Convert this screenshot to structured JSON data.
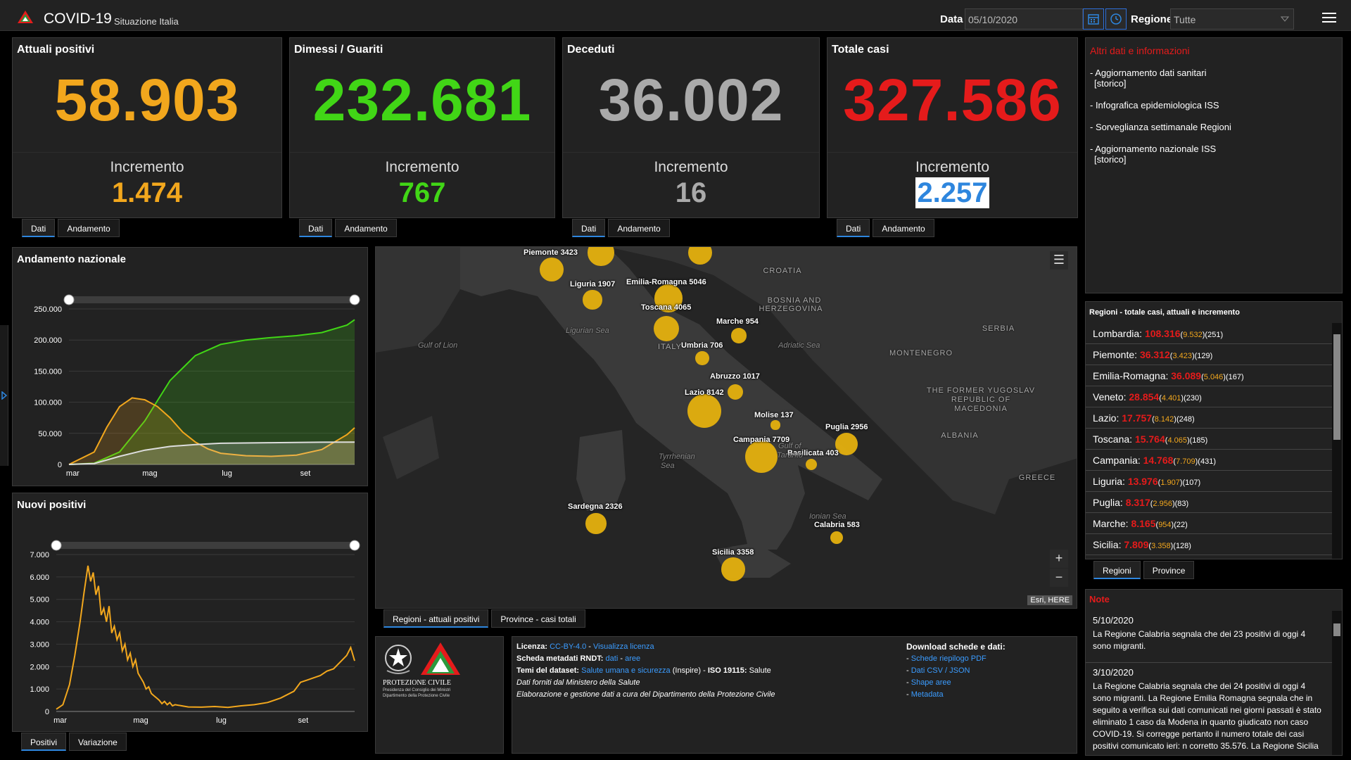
{
  "header": {
    "title": "COVID-19",
    "subtitle": "Situazione Italia",
    "data_label": "Data",
    "date_value": "05/10/2020",
    "regione_label": "Regione",
    "regione_value": "Tutte"
  },
  "kpis": [
    {
      "title": "Attuali positivi",
      "value": "58.903",
      "inc_label": "Incremento",
      "inc": "1.474",
      "color": "#f2a71d",
      "tabs": [
        "Dati",
        "Andamento"
      ]
    },
    {
      "title": "Dimessi / Guariti",
      "value": "232.681",
      "inc_label": "Incremento",
      "inc": "767",
      "color": "#41d616",
      "tabs": [
        "Dati",
        "Andamento"
      ]
    },
    {
      "title": "Deceduti",
      "value": "36.002",
      "inc_label": "Incremento",
      "inc": "16",
      "color": "#aaaaaa",
      "tabs": [
        "Dati",
        "Andamento"
      ]
    },
    {
      "title": "Totale casi",
      "value": "327.586",
      "inc_label": "Incremento",
      "inc": "2.257",
      "color": "#e51b1b",
      "tabs": [
        "Dati",
        "Andamento"
      ]
    }
  ],
  "info": {
    "title": "Altri dati e informazioni",
    "items": [
      {
        "line1": "- Aggiornamento dati sanitari",
        "line2": "[storico]"
      },
      {
        "line1": "- Infografica epidemiologica ISS",
        "line2": ""
      },
      {
        "line1": "- Sorveglianza settimanale Regioni",
        "line2": ""
      },
      {
        "line1": "- Aggiornamento nazionale ISS",
        "line2": "[storico]"
      }
    ]
  },
  "chart_data": [
    {
      "type": "area",
      "title": "Andamento nazionale",
      "categories": [
        "mar",
        "mag",
        "lug",
        "set"
      ],
      "ylim": [
        0,
        250000
      ],
      "yticks": [
        "0",
        "50.000",
        "100.000",
        "150.000",
        "200.000",
        "250.000"
      ],
      "series": [
        {
          "color": "#41d616",
          "x": [
            0,
            20,
            40,
            60,
            80,
            100,
            120,
            140,
            160,
            180,
            200,
            220,
            226
          ],
          "y": [
            0,
            2000,
            20000,
            70000,
            135000,
            175000,
            193000,
            200000,
            204000,
            207000,
            212000,
            224000,
            232681
          ]
        },
        {
          "color": "#f2a71d",
          "x": [
            0,
            20,
            30,
            40,
            50,
            60,
            70,
            80,
            90,
            100,
            110,
            120,
            140,
            160,
            180,
            200,
            220,
            226
          ],
          "y": [
            0,
            20000,
            60000,
            93000,
            107000,
            104000,
            93000,
            75000,
            52000,
            36000,
            25000,
            18000,
            14000,
            13000,
            15000,
            24000,
            48000,
            58903
          ]
        },
        {
          "color": "#dddddd",
          "x": [
            0,
            20,
            40,
            60,
            80,
            100,
            120,
            160,
            200,
            226
          ],
          "y": [
            0,
            1500,
            13000,
            23000,
            29000,
            32000,
            34000,
            35000,
            35700,
            36002
          ]
        }
      ],
      "tabs": []
    },
    {
      "type": "line",
      "title": "Nuovi positivi",
      "categories": [
        "mar",
        "mag",
        "lug",
        "set"
      ],
      "ylim": [
        0,
        7000
      ],
      "yticks": [
        "0",
        "1.000",
        "2.000",
        "3.000",
        "4.000",
        "5.000",
        "6.000",
        "7.000"
      ],
      "series": [
        {
          "color": "#f2a71d",
          "x": [
            0,
            5,
            10,
            14,
            18,
            21,
            24,
            26,
            28,
            30,
            32,
            34,
            36,
            38,
            40,
            42,
            44,
            46,
            48,
            50,
            52,
            54,
            56,
            58,
            60,
            62,
            64,
            66,
            68,
            70,
            72,
            74,
            76,
            78,
            80,
            82,
            84,
            86,
            88,
            90,
            95,
            100,
            110,
            120,
            130,
            140,
            150,
            160,
            170,
            180,
            185,
            190,
            195,
            200,
            205,
            210,
            215,
            220,
            223,
            226
          ],
          "y": [
            100,
            300,
            1200,
            2500,
            4000,
            5300,
            6500,
            5800,
            6200,
            5200,
            5600,
            4300,
            4600,
            4000,
            4700,
            3500,
            3800,
            3200,
            3500,
            2700,
            3000,
            2300,
            2600,
            2000,
            2300,
            1700,
            1500,
            1300,
            1000,
            1100,
            800,
            700,
            600,
            500,
            350,
            450,
            300,
            400,
            250,
            300,
            250,
            200,
            190,
            220,
            180,
            250,
            300,
            400,
            600,
            900,
            1300,
            1400,
            1500,
            1600,
            1800,
            1900,
            2200,
            2500,
            2850,
            2257
          ]
        }
      ],
      "tabs": [
        "Positivi",
        "Variazione"
      ]
    }
  ],
  "map": {
    "tabs": [
      "Regioni - attuali positivi",
      "Province - casi totali"
    ],
    "attribution": "Esri, HERE",
    "bubbles": [
      {
        "label": "Piemonte 3423",
        "value": 3423
      },
      {
        "label": "Liguria 1907",
        "value": 1907
      },
      {
        "label": "Emilia-Romagna 5046",
        "value": 5046
      },
      {
        "label": "Toscana 4065",
        "value": 4065
      },
      {
        "label": "Marche 954",
        "value": 954
      },
      {
        "label": "Umbria 706",
        "value": 706
      },
      {
        "label": "Abruzzo 1017",
        "value": 1017
      },
      {
        "label": "Lazio 8142",
        "value": 8142
      },
      {
        "label": "Molise 137",
        "value": 137
      },
      {
        "label": "Puglia 2956",
        "value": 2956
      },
      {
        "label": "Campania 7709",
        "value": 7709
      },
      {
        "label": "Basilicata 403",
        "value": 403
      },
      {
        "label": "Sardegna 2326",
        "value": 2326
      },
      {
        "label": "Calabria 583",
        "value": 583
      },
      {
        "label": "Sicilia 3358",
        "value": 3358
      }
    ],
    "unlabeled": [
      {
        "value": 4400
      },
      {
        "value": 3500
      }
    ],
    "places": [
      "CROATIA",
      "BOSNIA AND",
      "HERZEGOVINA",
      "SERBIA",
      "MONTENEGRO",
      "THE FORMER YUGOSLAV",
      "REPUBLIC OF",
      "MACEDONIA",
      "ALBANIA",
      "GREECE",
      "ITALY"
    ],
    "seas": [
      "Gulf of Lion",
      "Ligurian Sea",
      "Adriatic Sea",
      "Tyrrhenian",
      "Sea",
      "Gulf of",
      "Taranto",
      "Ionian Sea"
    ]
  },
  "regions": {
    "title": "Regioni - totale casi, attuali e incremento",
    "rows": [
      {
        "name": "Lombardia:",
        "total": "108.316",
        "attuali": "9.532",
        "inc": "(251)"
      },
      {
        "name": "Piemonte:",
        "total": "36.312",
        "attuali": "3.423",
        "inc": "(129)"
      },
      {
        "name": "Emilia-Romagna:",
        "total": "36.089",
        "attuali": "5.046",
        "inc": "(167)"
      },
      {
        "name": "Veneto:",
        "total": "28.854",
        "attuali": "4.401",
        "inc": "(230)"
      },
      {
        "name": "Lazio:",
        "total": "17.757",
        "attuali": "8.142",
        "inc": "(248)"
      },
      {
        "name": "Toscana:",
        "total": "15.764",
        "attuali": "4.065",
        "inc": "(185)"
      },
      {
        "name": "Campania:",
        "total": "14.768",
        "attuali": "7.709",
        "inc": "(431)"
      },
      {
        "name": "Liguria:",
        "total": "13.976",
        "attuali": "1.907",
        "inc": "(107)"
      },
      {
        "name": "Puglia:",
        "total": "8.317",
        "attuali": "2.956",
        "inc": "(83)"
      },
      {
        "name": "Marche:",
        "total": "8.165",
        "attuali": "954",
        "inc": "(22)"
      },
      {
        "name": "Sicilia:",
        "total": "7.809",
        "attuali": "3.358",
        "inc": "(128)"
      }
    ],
    "tabs": [
      "Regioni",
      "Province"
    ]
  },
  "notes": {
    "title": "Note",
    "items": [
      {
        "date": "5/10/2020",
        "text": "La Regione Calabria segnala che dei 23 positivi di oggi 4 sono migranti."
      },
      {
        "date": "3/10/2020",
        "text": "La Regione Calabria segnala che dei 24 positivi di oggi 4 sono migranti. La Regione Emilia Romagna segnala che in seguito a verifica sui dati comunicati nei giorni passati è stato eliminato 1 caso da Modena in quanto giudicato non caso COVID-19. Si corregge pertanto il numero totale dei casi positivi comunicato ieri: n corretto 35.576. La Regione Sicilia"
      }
    ]
  },
  "footer": {
    "org_line1": "PROTEZIONE CIVILE",
    "org_line2": "Presidenza del Consiglio dei Ministri",
    "org_line3": "Dipartimento della Protezione Civile",
    "lic_label": "Licenza:",
    "lic_value": "CC-BY-4.0",
    "lic_link": "Visualizza licenza",
    "meta_label": "Scheda metadati RNDT:",
    "meta_link1": "dati",
    "meta_link2": "aree",
    "temi_label": "Temi del dataset:",
    "temi_link": "Salute umana e sicurezza",
    "temi_rest": "(Inspire) -",
    "iso_label": "ISO 19115:",
    "iso_value": "Salute",
    "line4": "Dati forniti dal Ministero della Salute",
    "line5": "Elaborazione e gestione dati a cura del Dipartimento della Protezione Civile",
    "dl_title": "Download schede e dati:",
    "dl_items": [
      "Schede riepilogo PDF",
      "Dati CSV / JSON",
      "Shape aree",
      "Metadata"
    ]
  }
}
